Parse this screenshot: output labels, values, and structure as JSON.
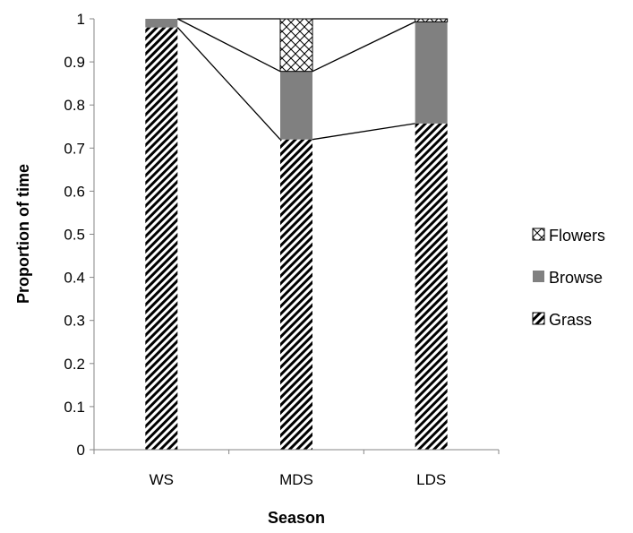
{
  "chart_data": {
    "type": "bar",
    "stacked": true,
    "title": "",
    "xlabel": "Season",
    "ylabel": "Proportion of time",
    "categories": [
      "WS",
      "MDS",
      "LDS"
    ],
    "ylim": [
      0,
      1
    ],
    "yticks": [
      "0",
      "0.1",
      "0.2",
      "0.3",
      "0.4",
      "0.5",
      "0.6",
      "0.7",
      "0.8",
      "0.9",
      "1"
    ],
    "series": [
      {
        "name": "Grass",
        "values": [
          0.98,
          0.72,
          0.757
        ],
        "pattern": "diagonal-hatch",
        "color": "#000000"
      },
      {
        "name": "Browse",
        "values": [
          0.02,
          0.158,
          0.236
        ],
        "pattern": "solid",
        "color": "#808080"
      },
      {
        "name": "Flowers",
        "values": [
          0.0,
          0.122,
          0.007
        ],
        "pattern": "crosshatch",
        "color": "#000000"
      }
    ],
    "series_lines": true,
    "grid": false,
    "legend_position": "right"
  }
}
